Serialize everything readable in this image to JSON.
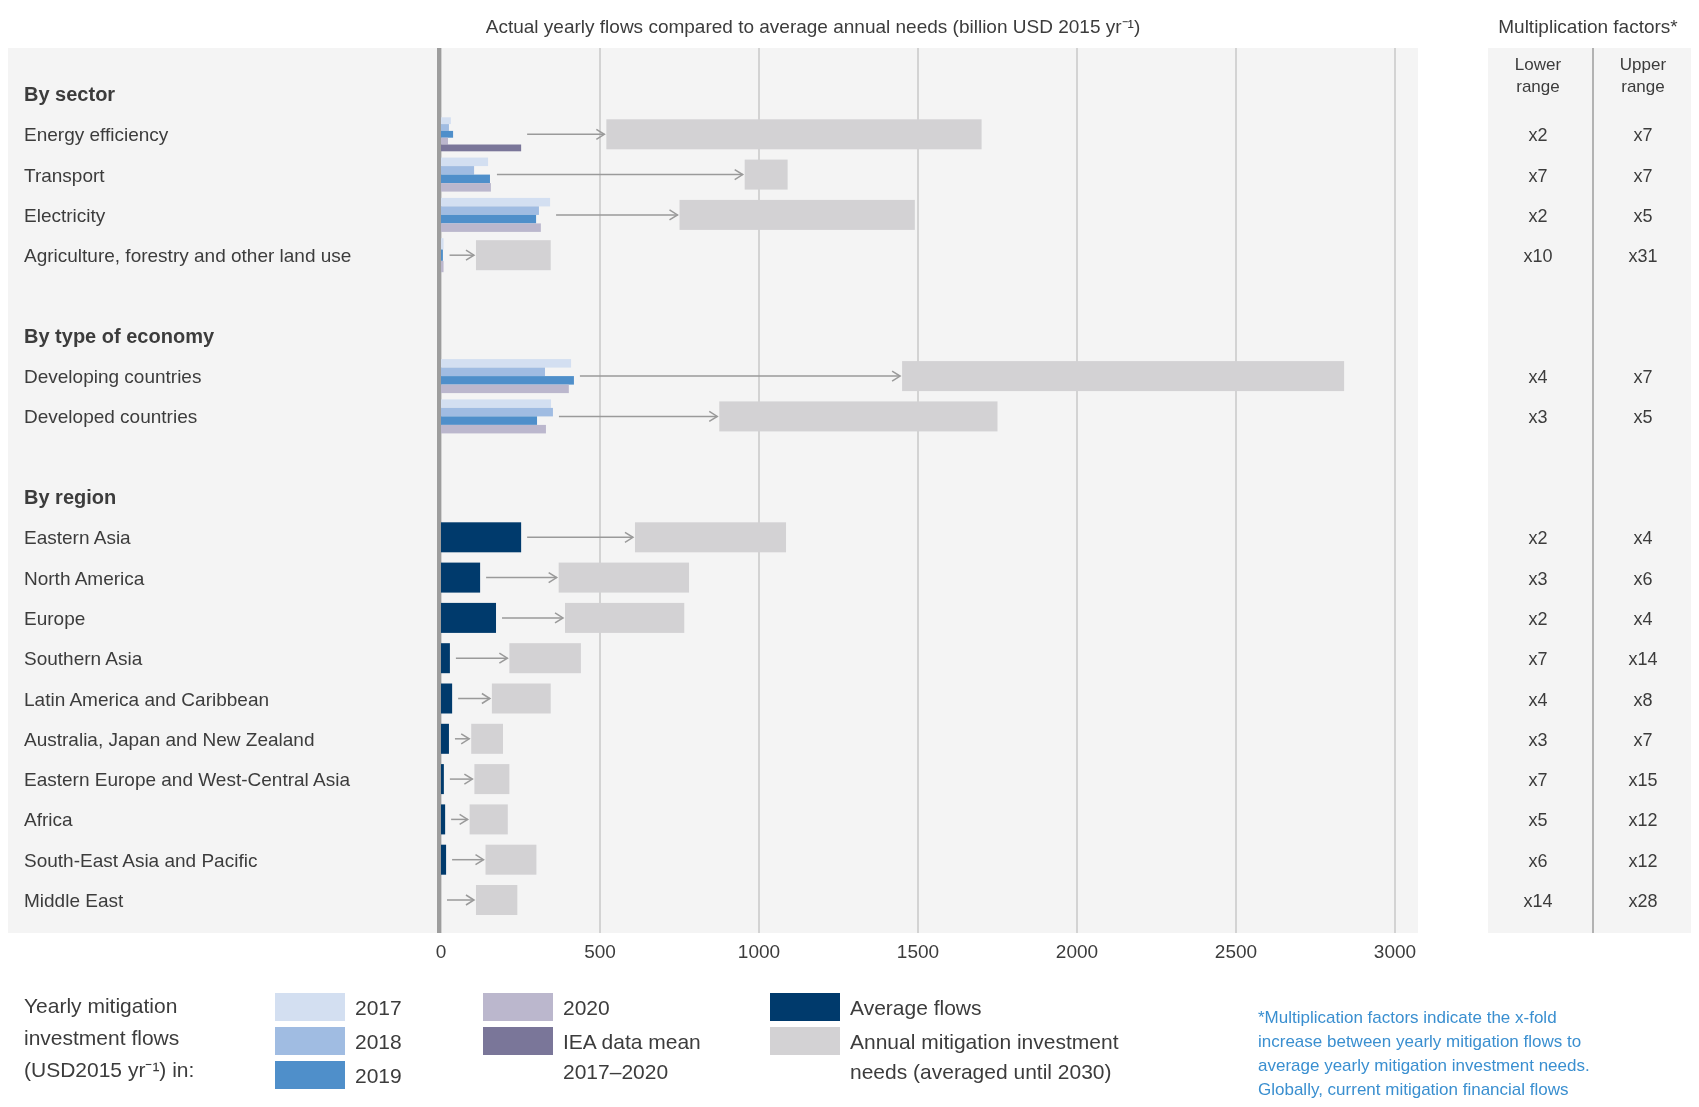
{
  "chart_data": [
    {
      "type": "bar",
      "orientation": "horizontal",
      "title": "Actual yearly flows compared to average annual needs (billion USD 2015 yr⁻¹)",
      "categories": [
        "By sector",
        "Energy efficiency",
        "Transport",
        "Electricity",
        "Agriculture, forestry and other land use",
        null,
        "By type of economy",
        "Developing countries",
        "Developed countries",
        null,
        "By region",
        "Eastern Asia",
        "North America",
        "Europe",
        "Southern Asia",
        "Latin America and Caribbean",
        "Australia, Japan and New Zealand",
        "Eastern Europe and West-Central Asia",
        "Africa",
        "South-East Asia and Pacific",
        "Middle East"
      ],
      "series": [
        {
          "name": "2017",
          "color": "#d3dff1",
          "values": [
            null,
            31,
            148,
            343,
            8,
            null,
            null,
            409,
            346,
            null,
            null,
            null,
            null,
            null,
            null,
            null,
            null,
            null,
            null,
            null,
            null
          ]
        },
        {
          "name": "2018",
          "color": "#a0bce2",
          "values": [
            null,
            25,
            104,
            308,
            null,
            null,
            null,
            327,
            352,
            null,
            null,
            null,
            null,
            null,
            null,
            null,
            null,
            null,
            null,
            null,
            null
          ]
        },
        {
          "name": "2019",
          "color": "#4f8fca",
          "values": [
            null,
            38,
            154,
            299,
            6,
            null,
            null,
            418,
            302,
            null,
            null,
            null,
            null,
            null,
            null,
            null,
            null,
            null,
            null,
            null,
            null
          ]
        },
        {
          "name": "2020",
          "color": "#bbb7cd",
          "values": [
            null,
            22,
            157,
            314,
            8,
            null,
            null,
            402,
            330,
            null,
            null,
            null,
            null,
            null,
            null,
            null,
            null,
            null,
            null,
            null,
            null
          ]
        },
        {
          "name": "IEA data mean 2017–2020",
          "color": "#7a7699",
          "values": [
            null,
            252,
            null,
            null,
            null,
            null,
            null,
            null,
            null,
            null,
            null,
            null,
            null,
            null,
            null,
            null,
            null,
            null,
            null,
            null,
            null
          ]
        },
        {
          "name": "Average flows",
          "color": "#003a6c",
          "values": [
            null,
            null,
            null,
            null,
            null,
            null,
            null,
            null,
            null,
            null,
            null,
            252,
            123,
            173,
            28,
            35,
            25,
            9,
            13,
            16,
            null
          ]
        },
        {
          "name": "Annual mitigation investment needs (averaged until 2030)",
          "color": "#d3d2d4",
          "base": [
            null,
            520,
            955,
            750,
            110,
            null,
            null,
            1450,
            875,
            null,
            null,
            610,
            370,
            390,
            215,
            160,
            95,
            105,
            90,
            140,
            110
          ],
          "values": [
            null,
            1180,
            135,
            740,
            235,
            null,
            null,
            1390,
            875,
            null,
            null,
            475,
            410,
            375,
            225,
            185,
            100,
            110,
            120,
            160,
            130
          ]
        }
      ],
      "xlim": [
        0,
        3000
      ],
      "xticks": [
        0,
        500,
        1000,
        1500,
        2000,
        2500,
        3000
      ],
      "grid": "x",
      "legend": "bottom",
      "legend_title": "Yearly mitigation investment flows (USD2015 yr⁻¹) in:"
    },
    {
      "type": "other",
      "title": "Multiplication factors*",
      "categories": [
        "Lower range",
        "Upper range"
      ],
      "cell_labels": [
        [
          null,
          null
        ],
        [
          "x2",
          "x7"
        ],
        [
          "x7",
          "x7"
        ],
        [
          "x2",
          "x5"
        ],
        [
          "x10",
          "x31"
        ],
        [
          null,
          null
        ],
        [
          null,
          null
        ],
        [
          "x4",
          "x7"
        ],
        [
          "x3",
          "x5"
        ],
        [
          null,
          null
        ],
        [
          null,
          null
        ],
        [
          "x2",
          "x4"
        ],
        [
          "x3",
          "x6"
        ],
        [
          "x2",
          "x4"
        ],
        [
          "x7",
          "x14"
        ],
        [
          "x4",
          "x8"
        ],
        [
          "x3",
          "x7"
        ],
        [
          "x7",
          "x15"
        ],
        [
          "x5",
          "x12"
        ],
        [
          "x6",
          "x12"
        ],
        [
          "x14",
          "x28"
        ]
      ],
      "annotations": [
        "*Multiplication factors indicate the x-fold increase between yearly mitigation flows to average yearly mitigation investment needs. Globally, current mitigation financial flows"
      ]
    }
  ]
}
